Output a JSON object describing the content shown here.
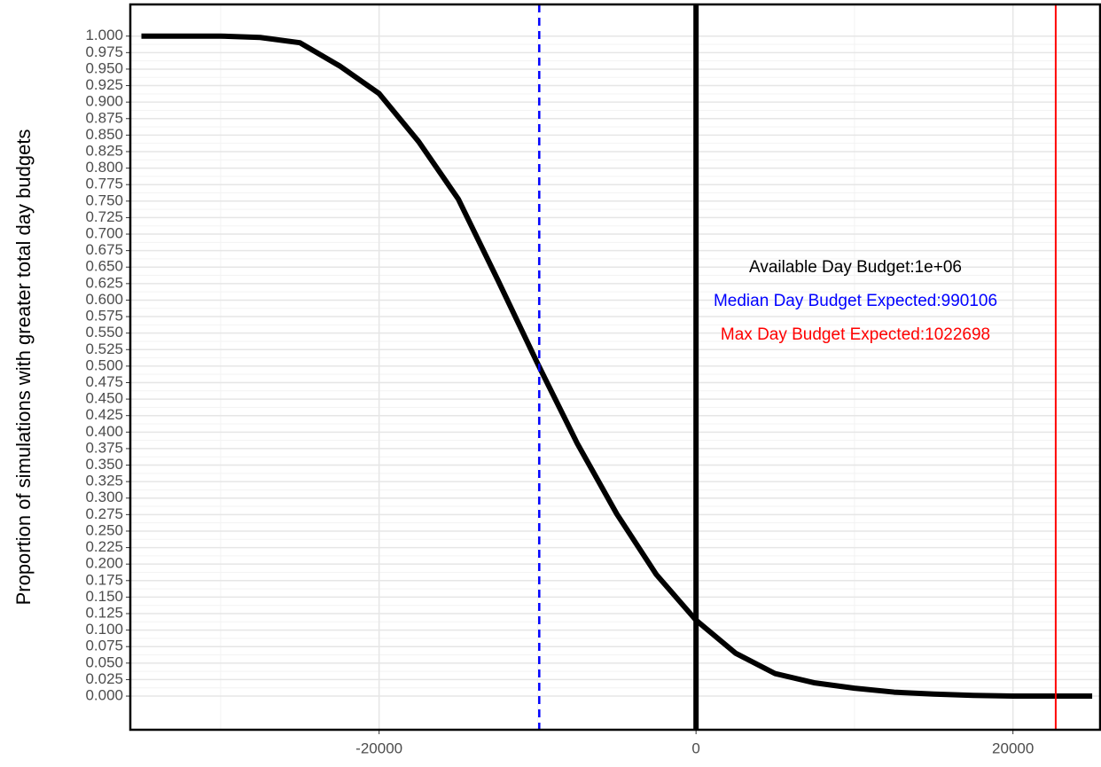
{
  "chart_data": {
    "type": "line",
    "y_label": "Proportion of simulations with greater total day budgets",
    "x": [
      -35000,
      -32500,
      -30000,
      -27500,
      -25000,
      -22500,
      -20000,
      -17500,
      -15000,
      -12500,
      -10000,
      -7500,
      -5000,
      -2500,
      0,
      2500,
      5000,
      7500,
      10000,
      12500,
      15000,
      17500,
      20000,
      22500,
      25000
    ],
    "series": [
      {
        "color": "#000000",
        "values": [
          1.0,
          1.0,
          1.0,
          0.998,
          0.99,
          0.955,
          0.913,
          0.84,
          0.753,
          0.63,
          0.504,
          0.383,
          0.276,
          0.184,
          0.115,
          0.065,
          0.034,
          0.02,
          0.012,
          0.006,
          0.003,
          0.001,
          0,
          0,
          0
        ]
      }
    ],
    "vlines": [
      {
        "x": 0,
        "color": "#000000",
        "style": "solid"
      },
      {
        "x": -9894,
        "color": "#0000ff",
        "style": "dashed"
      },
      {
        "x": 22698,
        "color": "#ff0000",
        "style": "solid"
      }
    ],
    "annotations": [
      {
        "text": "Available Day Budget:1e+06",
        "color": "#000000"
      },
      {
        "text": "Median Day Budget Expected:990106",
        "color": "#0000ff"
      },
      {
        "text": "Max Day Budget Expected:1022698",
        "color": "#ff0000"
      }
    ],
    "xlim": [
      -35700,
      25500
    ],
    "ylim": [
      -0.051,
      1.048
    ],
    "xticks": [
      -20000,
      0,
      20000
    ],
    "yticks": [
      {
        "value": 0,
        "label": "0.000"
      },
      {
        "value": 0.025,
        "label": "0.025"
      },
      {
        "value": 0.05,
        "label": "0.050"
      },
      {
        "value": 0.075,
        "label": "0.075"
      },
      {
        "value": 0.1,
        "label": "0.100"
      },
      {
        "value": 0.125,
        "label": "0.125"
      },
      {
        "value": 0.15,
        "label": "0.150"
      },
      {
        "value": 0.175,
        "label": "0.175"
      },
      {
        "value": 0.2,
        "label": "0.200"
      },
      {
        "value": 0.225,
        "label": "0.225"
      },
      {
        "value": 0.25,
        "label": "0.250"
      },
      {
        "value": 0.275,
        "label": "0.275"
      },
      {
        "value": 0.3,
        "label": "0.300"
      },
      {
        "value": 0.325,
        "label": "0.325"
      },
      {
        "value": 0.35,
        "label": "0.350"
      },
      {
        "value": 0.375,
        "label": "0.375"
      },
      {
        "value": 0.4,
        "label": "0.400"
      },
      {
        "value": 0.425,
        "label": "0.425"
      },
      {
        "value": 0.45,
        "label": "0.450"
      },
      {
        "value": 0.475,
        "label": "0.475"
      },
      {
        "value": 0.5,
        "label": "0.500"
      },
      {
        "value": 0.525,
        "label": "0.525"
      },
      {
        "value": 0.55,
        "label": "0.550"
      },
      {
        "value": 0.575,
        "label": "0.575"
      },
      {
        "value": 0.6,
        "label": "0.600"
      },
      {
        "value": 0.625,
        "label": "0.625"
      },
      {
        "value": 0.65,
        "label": "0.650"
      },
      {
        "value": 0.675,
        "label": "0.675"
      },
      {
        "value": 0.7,
        "label": "0.700"
      },
      {
        "value": 0.725,
        "label": "0.725"
      },
      {
        "value": 0.75,
        "label": "0.750"
      },
      {
        "value": 0.775,
        "label": "0.775"
      },
      {
        "value": 0.8,
        "label": "0.800"
      },
      {
        "value": 0.825,
        "label": "0.825"
      },
      {
        "value": 0.85,
        "label": "0.850"
      },
      {
        "value": 0.875,
        "label": "0.875"
      },
      {
        "value": 0.9,
        "label": "0.900"
      },
      {
        "value": 0.925,
        "label": "0.925"
      },
      {
        "value": 0.95,
        "label": "0.950"
      },
      {
        "value": 0.975,
        "label": "0.975"
      },
      {
        "value": 1,
        "label": "1.000"
      }
    ],
    "grid": true
  }
}
